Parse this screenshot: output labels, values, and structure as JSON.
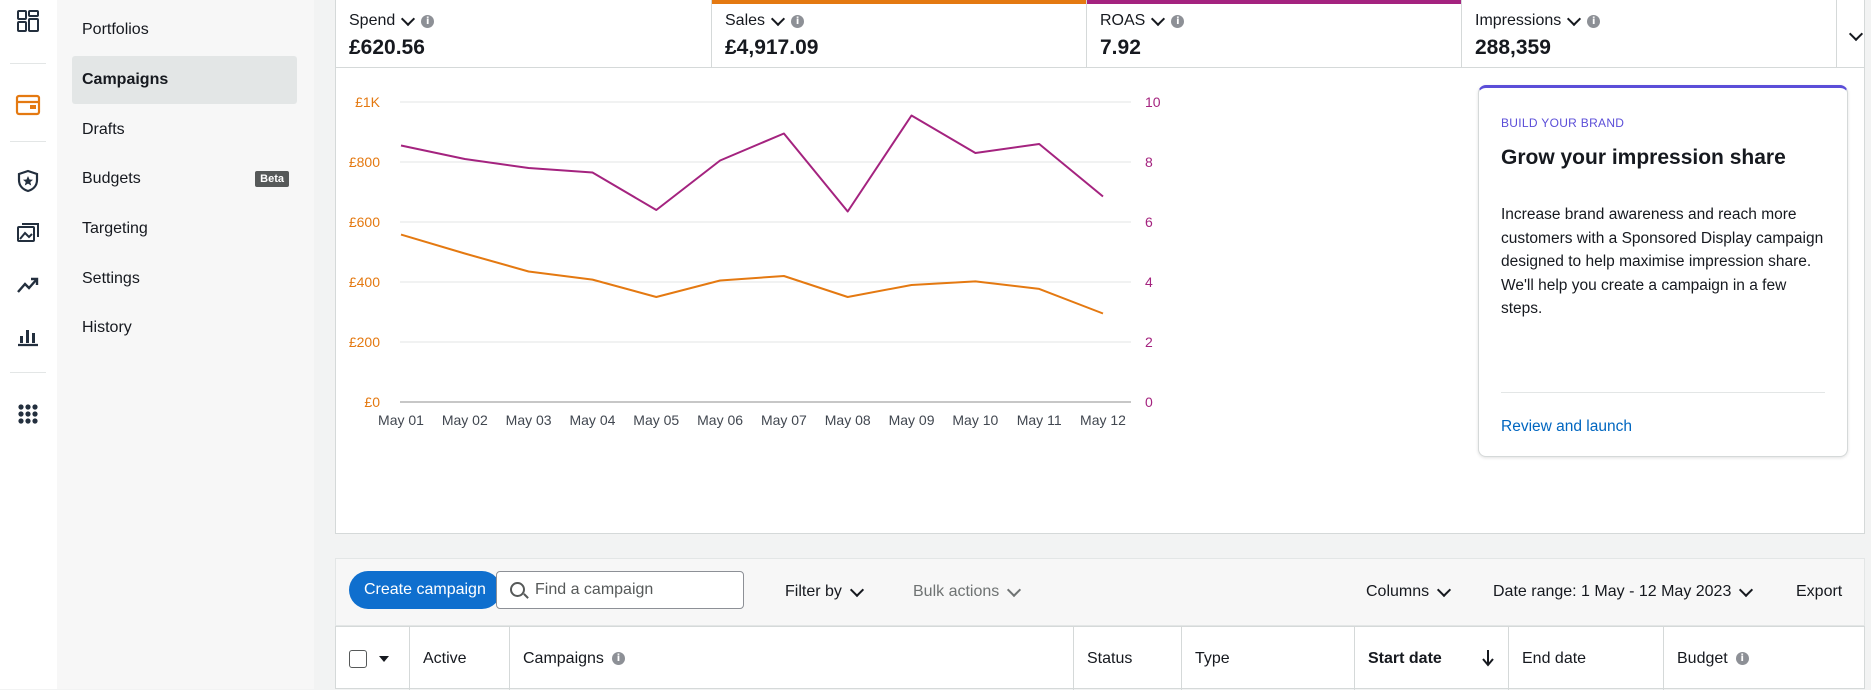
{
  "sidebar": {
    "items": [
      {
        "label": "Portfolios"
      },
      {
        "label": "Campaigns",
        "active": true
      },
      {
        "label": "Drafts"
      },
      {
        "label": "Budgets",
        "badge": "Beta"
      },
      {
        "label": "Targeting"
      },
      {
        "label": "Settings"
      },
      {
        "label": "History"
      }
    ]
  },
  "rail_icons": [
    "dashboard-icon",
    "wallet-icon",
    "shield-icon",
    "media-icon",
    "trend-icon",
    "bar-chart-icon",
    "apps-grid-icon"
  ],
  "metrics": [
    {
      "label": "Spend",
      "value": "£620.56",
      "color": ""
    },
    {
      "label": "Sales",
      "value": "£4,917.09",
      "color": "#e47911"
    },
    {
      "label": "ROAS",
      "value": "7.92",
      "color": "#a4237f"
    },
    {
      "label": "Impressions",
      "value": "288,359",
      "color": ""
    }
  ],
  "chart_data": {
    "type": "line",
    "x": [
      "May 01",
      "May 02",
      "May 03",
      "May 04",
      "May 05",
      "May 06",
      "May 07",
      "May 08",
      "May 09",
      "May 10",
      "May 11",
      "May 12"
    ],
    "left_axis": {
      "ticks": [
        "£0",
        "£200",
        "£400",
        "£600",
        "£800",
        "£1K"
      ],
      "range": [
        0,
        1000
      ],
      "color": "#e47911"
    },
    "right_axis": {
      "ticks": [
        "0",
        "2",
        "4",
        "6",
        "8",
        "10"
      ],
      "range": [
        0,
        10
      ],
      "color": "#a4237f"
    },
    "series": [
      {
        "name": "Sales",
        "axis": "left",
        "color": "#e47911",
        "values": [
          558,
          495,
          435,
          408,
          350,
          405,
          420,
          350,
          390,
          402,
          377,
          295
        ]
      },
      {
        "name": "ROAS",
        "axis": "right",
        "color": "#a4237f",
        "values": [
          8.55,
          8.1,
          7.8,
          7.65,
          6.4,
          8.05,
          8.95,
          6.35,
          9.55,
          8.3,
          8.6,
          6.85
        ]
      }
    ],
    "grid": true
  },
  "promo": {
    "kicker": "BUILD YOUR BRAND",
    "title": "Grow your impression share",
    "body": "Increase brand awareness and reach more customers with a Sponsored Display campaign designed to help maximise impression share. We'll help you create a campaign in a few steps.",
    "link": "Review and launch"
  },
  "toolbar": {
    "create_label": "Create campaign",
    "search_placeholder": "Find a campaign",
    "filter_label": "Filter by",
    "bulk_label": "Bulk actions",
    "columns_label": "Columns",
    "date_range_label": "Date range: 1 May - 12 May 2023",
    "export_label": "Export"
  },
  "table": {
    "columns": [
      "Active",
      "Campaigns",
      "Status",
      "Type",
      "Start date",
      "End date",
      "Budget"
    ]
  }
}
